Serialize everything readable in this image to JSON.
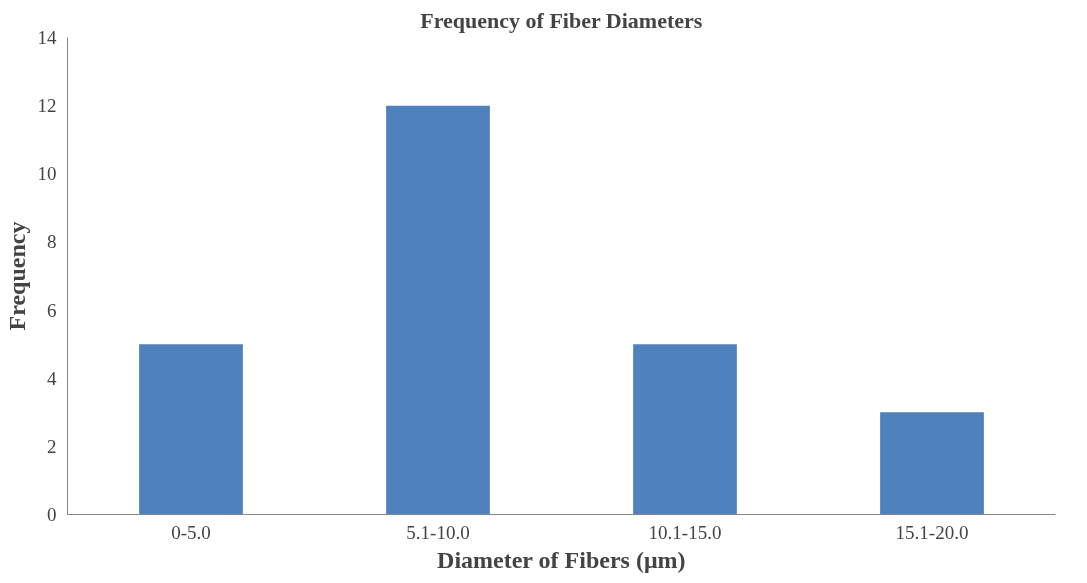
{
  "chart_data": {
    "type": "bar",
    "title": "Frequency of Fiber Diameters",
    "xlabel": "Diameter of Fibers (μm)",
    "ylabel": "Frequency",
    "categories": [
      "0-5.0",
      "5.1-10.0",
      "10.1-15.0",
      "15.1-20.0"
    ],
    "values": [
      5,
      12,
      5,
      3
    ],
    "color": "#4f81bd",
    "ylim": [
      0,
      14
    ],
    "yticks": [
      0,
      2,
      4,
      6,
      8,
      10,
      12,
      14
    ],
    "grid": false
  }
}
